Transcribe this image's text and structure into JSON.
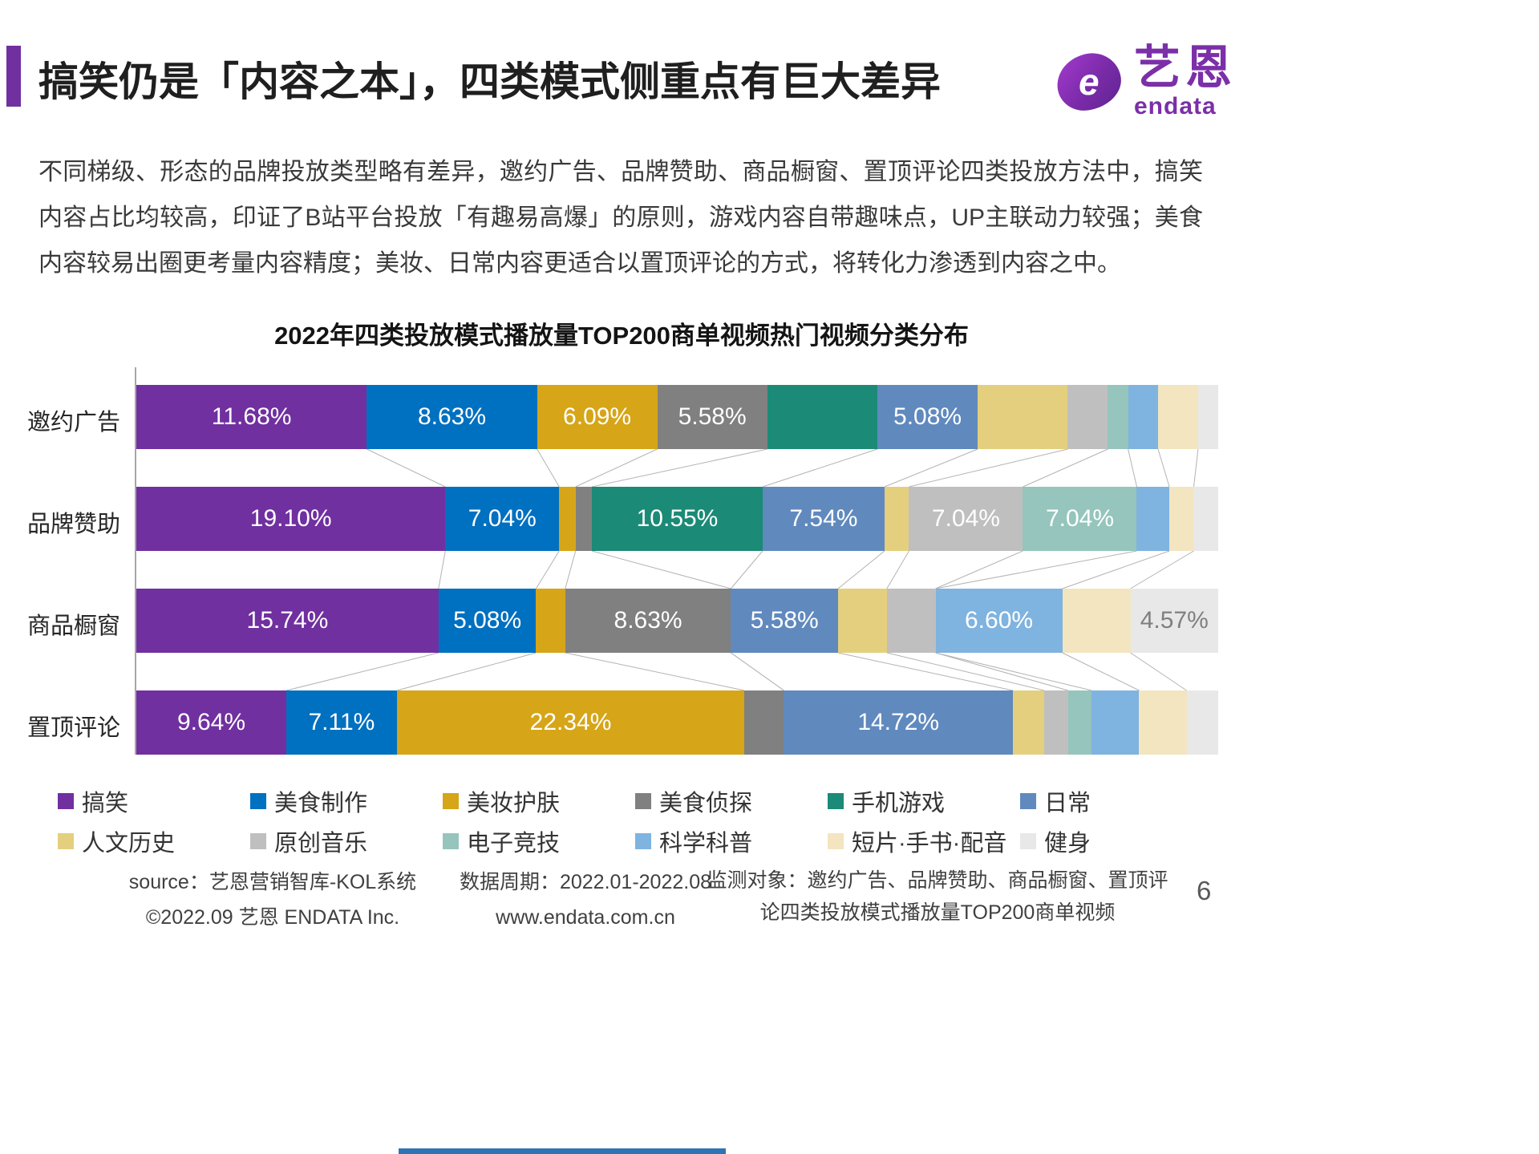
{
  "header": {
    "title": "搞笑仍是「内容之本」，四类模式侧重点有巨大差异"
  },
  "logo": {
    "mark": "e",
    "name_cn": "艺恩",
    "name_en": "endata"
  },
  "intro": {
    "text": "不同梯级、形态的品牌投放类型略有差异，邀约广告、品牌赞助、商品橱窗、置顶评论四类投放方法中，搞笑内容占比均较高，印证了B站平台投放「有趣易高爆」的原则，游戏内容自带趣味点，UP主联动力较强；美食内容较易出圈更考量内容精度；美妆、日常内容更适合以置顶评论的方式，将转化力渗透到内容之中。"
  },
  "chart_data": {
    "type": "bar",
    "variant": "horizontal-stacked-row-normalized",
    "title": "2022年四类投放模式播放量TOP200商单视频热门视频分类分布",
    "rows": [
      "邀约广告",
      "品牌赞助",
      "商品橱窗",
      "置顶评论"
    ],
    "categories": [
      "搞笑",
      "美食制作",
      "美妆护肤",
      "美食侦探",
      "手机游戏",
      "日常",
      "人文历史",
      "原创音乐",
      "电子竞技",
      "科学科普",
      "短片·手书·配音",
      "健身"
    ],
    "colors": [
      "#7030A0",
      "#0070C0",
      "#D6A518",
      "#808080",
      "#1B8A77",
      "#6089BE",
      "#E4CF7E",
      "#BFBFBF",
      "#95C5BC",
      "#7FB3E0",
      "#F2E5C0",
      "#E8E8E8"
    ],
    "legend_position": "bottom",
    "series": [
      {
        "name": "邀约广告",
        "values": [
          11.68,
          8.63,
          6.09,
          5.58,
          5.58,
          5.08,
          4.57,
          2.03,
          1.02,
          1.52,
          2.03,
          1.02
        ],
        "labels": [
          "11.68%",
          "8.63%",
          "6.09%",
          "5.58%",
          "",
          "5.08%",
          "",
          "",
          "",
          "",
          "",
          ""
        ]
      },
      {
        "name": "品牌赞助",
        "values": [
          19.1,
          7.04,
          1.01,
          1.01,
          10.55,
          7.54,
          1.51,
          7.04,
          7.04,
          2.01,
          1.51,
          1.51
        ],
        "labels": [
          "19.10%",
          "7.04%",
          "",
          "",
          "10.55%",
          "7.54%",
          "",
          "7.04%",
          "7.04%",
          "",
          "",
          ""
        ]
      },
      {
        "name": "商品橱窗",
        "values": [
          15.74,
          5.08,
          1.52,
          8.63,
          0,
          5.58,
          2.54,
          2.54,
          0,
          6.6,
          3.55,
          4.57
        ],
        "labels": [
          "15.74%",
          "5.08%",
          "",
          "8.63%",
          "",
          "5.58%",
          "",
          "",
          "",
          "6.60%",
          "",
          "4.57%"
        ]
      },
      {
        "name": "置顶评论",
        "values": [
          9.64,
          7.11,
          22.34,
          2.54,
          0,
          14.72,
          2.03,
          1.52,
          1.52,
          3.05,
          3.05,
          2.03
        ],
        "labels": [
          "9.64%",
          "7.11%",
          "22.34%",
          "",
          "",
          "14.72%",
          "",
          "",
          "",
          "",
          "",
          ""
        ]
      }
    ]
  },
  "footer": {
    "source_line1": "source：艺恩营销智库-KOL系统",
    "copyright": "©2022.09 艺恩 ENDATA Inc.",
    "period": "数据周期：2022.01-2022.08",
    "website": "www.endata.com.cn",
    "monitor": "监测对象：邀约广告、品牌赞助、商品橱窗、置顶评论四类投放模式播放量TOP200商单视频",
    "page_number": "6"
  }
}
